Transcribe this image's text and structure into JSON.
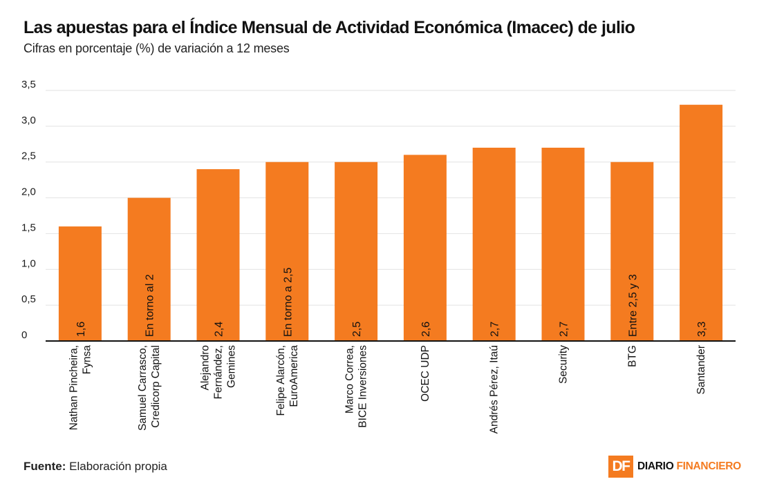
{
  "header": {
    "title": "Las apuestas para el Índice Mensual de Actividad Económica (Imacec) de julio",
    "subtitle": "Cifras en porcentaje (%) de variación a 12 meses"
  },
  "footer": {
    "source_label": "Fuente:",
    "source_text": "Elaboración propia"
  },
  "logo": {
    "mark": "DF",
    "name_part1": "DIARIO ",
    "name_part2": "FINANCIERO"
  },
  "colors": {
    "bar": "#f47b20",
    "grid": "#e2e2e2",
    "axis": "#111111",
    "text": "#1a1a1a"
  },
  "chart_data": {
    "type": "bar",
    "title": "Las apuestas para el Índice Mensual de Actividad Económica (Imacec) de julio",
    "subtitle": "Cifras en porcentaje (%) de variación a 12 meses",
    "xlabel": "",
    "ylabel": "",
    "ylim": [
      0,
      3.5
    ],
    "yticks": [
      0,
      0.5,
      1.0,
      1.5,
      2.0,
      2.5,
      3.0,
      3.5
    ],
    "ytick_labels": [
      "0",
      "0,5",
      "1,0",
      "1,5",
      "2,0",
      "2,5",
      "3,0",
      "3,5"
    ],
    "grid": true,
    "categories": [
      [
        "Nathan Pincheira,",
        "Fynsa"
      ],
      [
        "Samuel Carrasco,",
        "Credicorp Capital"
      ],
      [
        "Alejandro",
        "Fernández,",
        "Gemines"
      ],
      [
        "Felipe Alarcón,",
        "EuroAmerica"
      ],
      [
        "Marco Correa,",
        "BICE Inversiones"
      ],
      [
        "OCEC UDP"
      ],
      [
        "Andrés Pérez, Itaú"
      ],
      [
        "Security"
      ],
      [
        "BTG"
      ],
      [
        "Santander"
      ]
    ],
    "values": [
      1.6,
      2.0,
      2.4,
      2.5,
      2.5,
      2.6,
      2.7,
      2.7,
      2.5,
      3.3
    ],
    "data_labels": [
      "1,6",
      "En torno al 2",
      "2,4",
      "En torno a 2,5",
      "2,5",
      "2,6",
      "2,7",
      "2,7",
      "Entre 2,5 y 3",
      "3,3"
    ]
  }
}
